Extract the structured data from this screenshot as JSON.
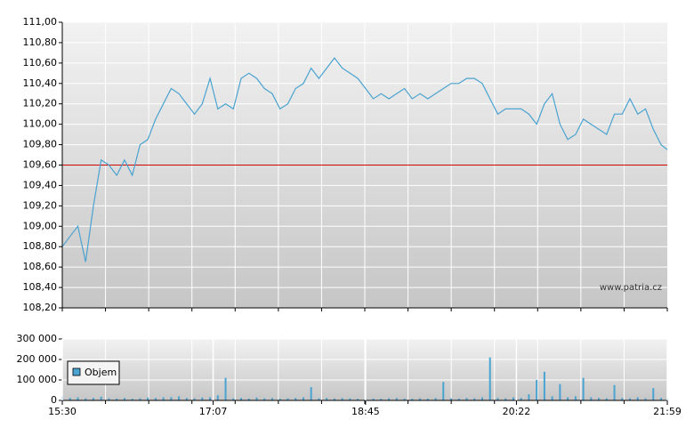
{
  "chart_data": [
    {
      "type": "line",
      "color": "#4aa3d0",
      "watermark": "www.patria.cz",
      "reference_line": 109.6,
      "reference_color": "#cc0000",
      "xlim": [
        "15:30",
        "21:59"
      ],
      "x": [
        "15:30",
        "15:35",
        "15:40",
        "15:45",
        "15:50",
        "15:55",
        "16:00",
        "16:05",
        "16:10",
        "16:15",
        "16:20",
        "16:25",
        "16:30",
        "16:35",
        "16:40",
        "16:45",
        "16:50",
        "16:55",
        "17:00",
        "17:05",
        "17:10",
        "17:15",
        "17:20",
        "17:25",
        "17:30",
        "17:35",
        "17:40",
        "17:45",
        "17:50",
        "17:55",
        "18:00",
        "18:05",
        "18:10",
        "18:15",
        "18:20",
        "18:25",
        "18:30",
        "18:35",
        "18:40",
        "18:45",
        "18:50",
        "18:55",
        "19:00",
        "19:05",
        "19:10",
        "19:15",
        "19:20",
        "19:25",
        "19:30",
        "19:35",
        "19:40",
        "19:45",
        "19:50",
        "19:55",
        "20:00",
        "20:05",
        "20:10",
        "20:15",
        "20:20",
        "20:25",
        "20:30",
        "20:35",
        "20:40",
        "20:45",
        "20:50",
        "20:55",
        "21:00",
        "21:05",
        "21:10",
        "21:15",
        "21:20",
        "21:25",
        "21:30",
        "21:35",
        "21:40",
        "21:45",
        "21:50",
        "21:55",
        "21:59"
      ],
      "values": [
        108.8,
        108.9,
        109.0,
        108.65,
        109.2,
        109.65,
        109.6,
        109.5,
        109.65,
        109.5,
        109.8,
        109.85,
        110.05,
        110.2,
        110.35,
        110.3,
        110.2,
        110.1,
        110.2,
        110.45,
        110.15,
        110.2,
        110.15,
        110.45,
        110.5,
        110.45,
        110.35,
        110.3,
        110.15,
        110.2,
        110.35,
        110.4,
        110.55,
        110.45,
        110.55,
        110.65,
        110.55,
        110.5,
        110.45,
        110.35,
        110.25,
        110.3,
        110.25,
        110.3,
        110.35,
        110.25,
        110.3,
        110.25,
        110.3,
        110.35,
        110.4,
        110.4,
        110.45,
        110.45,
        110.4,
        110.25,
        110.1,
        110.15,
        110.15,
        110.15,
        110.1,
        110.0,
        110.2,
        110.3,
        110.0,
        109.85,
        109.9,
        110.05,
        110.0,
        109.95,
        109.9,
        110.1,
        110.1,
        110.25,
        110.1,
        110.15,
        109.95,
        109.8,
        109.75
      ],
      "ylim": [
        108.2,
        111.0
      ],
      "yticks": [
        {
          "value": 108.2,
          "label": "108,20"
        },
        {
          "value": 108.4,
          "label": "108,40"
        },
        {
          "value": 108.6,
          "label": "108,60"
        },
        {
          "value": 108.8,
          "label": "108,80"
        },
        {
          "value": 109.0,
          "label": "109,00"
        },
        {
          "value": 109.2,
          "label": "109,20"
        },
        {
          "value": 109.4,
          "label": "109,40"
        },
        {
          "value": 109.6,
          "label": "109,60"
        },
        {
          "value": 109.8,
          "label": "109,80"
        },
        {
          "value": 110.0,
          "label": "110,00"
        },
        {
          "value": 110.2,
          "label": "110,20"
        },
        {
          "value": 110.4,
          "label": "110,40"
        },
        {
          "value": 110.6,
          "label": "110,60"
        },
        {
          "value": 110.8,
          "label": "110,80"
        },
        {
          "value": 111.0,
          "label": "111,00"
        }
      ],
      "grid": true
    },
    {
      "type": "bar",
      "xlim": [
        "15:30",
        "21:59"
      ],
      "x": [
        "15:30",
        "15:35",
        "15:40",
        "15:45",
        "15:50",
        "15:55",
        "16:00",
        "16:05",
        "16:10",
        "16:15",
        "16:20",
        "16:25",
        "16:30",
        "16:35",
        "16:40",
        "16:45",
        "16:50",
        "16:55",
        "17:00",
        "17:05",
        "17:10",
        "17:15",
        "17:20",
        "17:25",
        "17:30",
        "17:35",
        "17:40",
        "17:45",
        "17:50",
        "17:55",
        "18:00",
        "18:05",
        "18:10",
        "18:15",
        "18:20",
        "18:25",
        "18:30",
        "18:35",
        "18:40",
        "18:45",
        "18:50",
        "18:55",
        "19:00",
        "19:05",
        "19:10",
        "19:15",
        "19:20",
        "19:25",
        "19:30",
        "19:35",
        "19:40",
        "19:45",
        "19:50",
        "19:55",
        "20:00",
        "20:05",
        "20:10",
        "20:15",
        "20:20",
        "20:25",
        "20:30",
        "20:35",
        "20:40",
        "20:45",
        "20:50",
        "20:55",
        "21:00",
        "21:05",
        "21:10",
        "21:15",
        "21:20",
        "21:25",
        "21:30",
        "21:35",
        "21:40",
        "21:45",
        "21:50",
        "21:55",
        "21:59"
      ],
      "series": [
        {
          "name": "Objem",
          "color": "#4aa3d0",
          "values": [
            20000,
            12000,
            15000,
            10000,
            12000,
            18000,
            10000,
            9000,
            12000,
            8000,
            10000,
            14000,
            12000,
            15000,
            16000,
            20000,
            12000,
            10000,
            14000,
            15000,
            25000,
            110000,
            10000,
            12000,
            9000,
            14000,
            10000,
            12000,
            8000,
            10000,
            12000,
            15000,
            65000,
            10000,
            12000,
            9000,
            11000,
            10000,
            8000,
            10000,
            9000,
            8000,
            10000,
            12000,
            9000,
            8000,
            10000,
            9000,
            12000,
            90000,
            10000,
            9000,
            12000,
            10000,
            15000,
            210000,
            12000,
            10000,
            15000,
            12000,
            30000,
            100000,
            140000,
            20000,
            80000,
            15000,
            20000,
            110000,
            15000,
            12000,
            10000,
            75000,
            12000,
            10000,
            15000,
            10000,
            60000,
            12000,
            10000
          ]
        }
      ],
      "ylim": [
        0,
        300000
      ],
      "yticks": [
        {
          "value": 0,
          "label": "0"
        },
        {
          "value": 100000,
          "label": "100 000"
        },
        {
          "value": 200000,
          "label": "200 000"
        },
        {
          "value": 300000,
          "label": "300 000"
        }
      ],
      "xticks": [
        "15:30",
        "17:07",
        "18:45",
        "20:22",
        "21:59"
      ],
      "legend": "upper-left",
      "grid": true
    }
  ]
}
